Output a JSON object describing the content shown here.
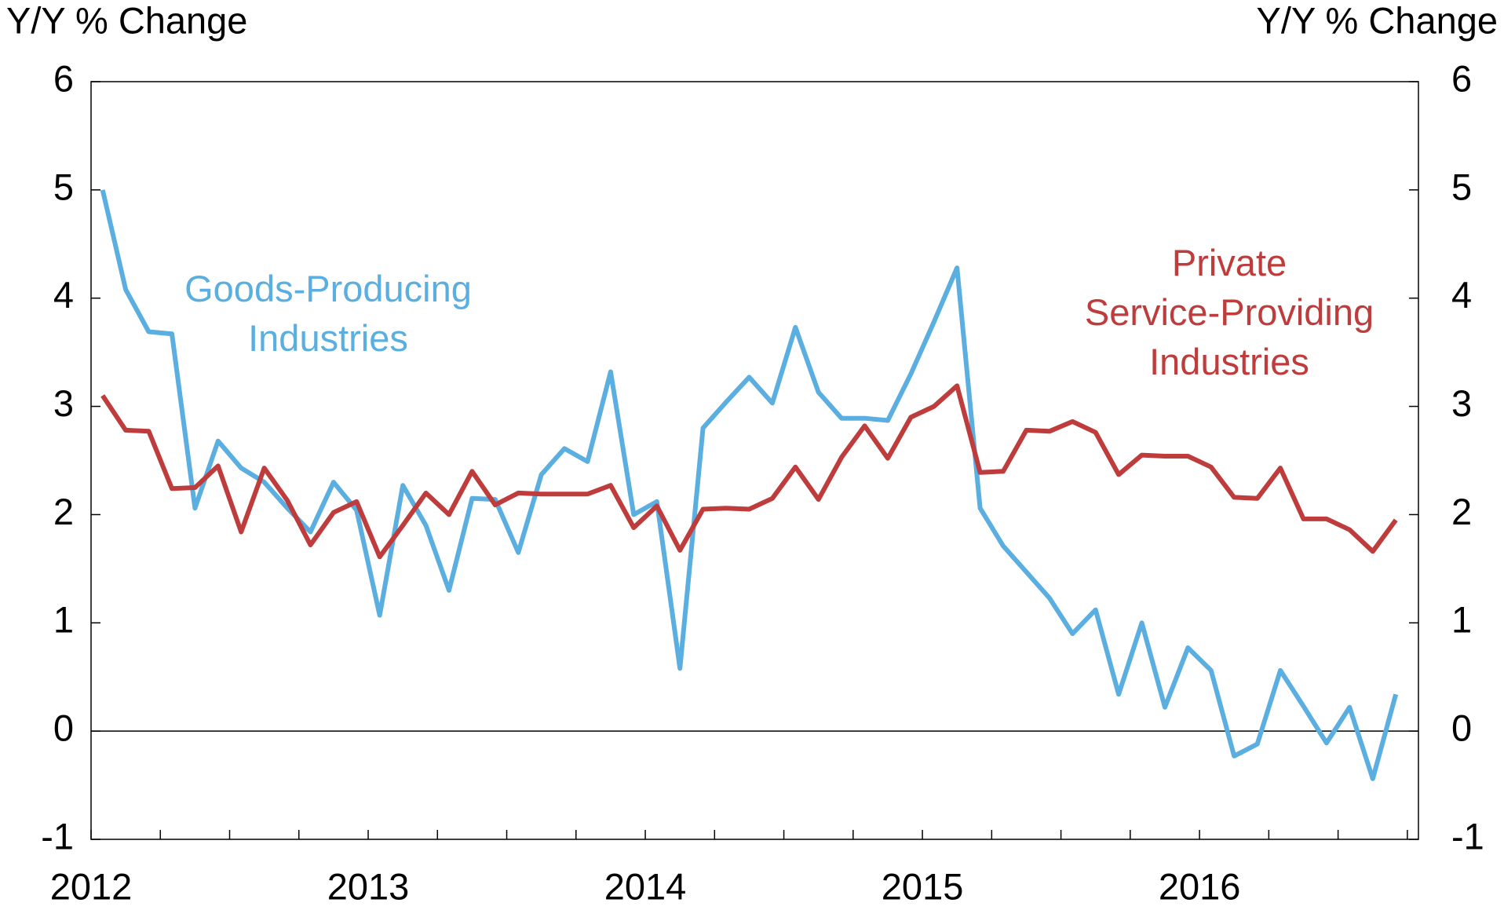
{
  "chart_data": {
    "type": "line",
    "y_label": "Y/Y % Change",
    "y2_label": "Y/Y % Change",
    "x": [
      "2012-01",
      "2012-02",
      "2012-03",
      "2012-04",
      "2012-05",
      "2012-06",
      "2012-07",
      "2012-08",
      "2012-09",
      "2012-10",
      "2012-11",
      "2012-12",
      "2013-01",
      "2013-02",
      "2013-03",
      "2013-04",
      "2013-05",
      "2013-06",
      "2013-07",
      "2013-08",
      "2013-09",
      "2013-10",
      "2013-11",
      "2013-12",
      "2014-01",
      "2014-02",
      "2014-03",
      "2014-04",
      "2014-05",
      "2014-06",
      "2014-07",
      "2014-08",
      "2014-09",
      "2014-10",
      "2014-11",
      "2014-12",
      "2015-01",
      "2015-02",
      "2015-03",
      "2015-04",
      "2015-05",
      "2015-06",
      "2015-07",
      "2015-08",
      "2015-09",
      "2015-10",
      "2015-11",
      "2015-12",
      "2016-01",
      "2016-02",
      "2016-03",
      "2016-04",
      "2016-05",
      "2016-06",
      "2016-07",
      "2016-08",
      "2016-09"
    ],
    "series": [
      {
        "name": "Goods-Producing Industries",
        "color": "#5aaee0",
        "values": [
          5.0,
          4.08,
          3.69,
          3.67,
          2.06,
          2.68,
          2.43,
          2.3,
          2.06,
          1.84,
          2.3,
          2.04,
          1.07,
          2.27,
          1.9,
          1.3,
          2.15,
          2.14,
          1.65,
          2.37,
          2.61,
          2.49,
          3.32,
          2.0,
          2.12,
          0.58,
          2.8,
          3.04,
          3.27,
          3.03,
          3.73,
          3.13,
          2.89,
          2.89,
          2.87,
          3.3,
          3.78,
          4.28,
          2.06,
          1.71,
          1.47,
          1.23,
          0.9,
          1.12,
          0.34,
          1.0,
          0.22,
          0.77,
          0.56,
          -0.23,
          -0.12,
          0.56,
          0.23,
          -0.11,
          0.22,
          -0.44,
          0.34
        ]
      },
      {
        "name": "Private Service-Providing Industries",
        "color": "#be3c3c",
        "values": [
          3.1,
          2.78,
          2.77,
          2.24,
          2.25,
          2.45,
          1.84,
          2.43,
          2.13,
          1.72,
          2.02,
          2.12,
          1.61,
          1.9,
          2.2,
          2.0,
          2.4,
          2.09,
          2.2,
          2.19,
          2.19,
          2.19,
          2.27,
          1.88,
          2.08,
          1.67,
          2.05,
          2.06,
          2.05,
          2.15,
          2.44,
          2.14,
          2.53,
          2.82,
          2.52,
          2.9,
          3.0,
          3.19,
          2.39,
          2.4,
          2.78,
          2.77,
          2.86,
          2.76,
          2.37,
          2.55,
          2.54,
          2.54,
          2.44,
          2.16,
          2.15,
          2.43,
          1.96,
          1.96,
          1.86,
          1.66,
          1.95
        ]
      }
    ],
    "xlim": [
      2012,
      2016.79
    ],
    "xticks": [
      2012,
      2013,
      2014,
      2015,
      2016
    ],
    "ylim": [
      -1,
      6
    ],
    "yticks": [
      -1,
      0,
      1,
      2,
      3,
      4,
      5,
      6
    ],
    "y2lim": [
      -1,
      6
    ],
    "y2ticks": [
      -1,
      0,
      1,
      2,
      3,
      4,
      5,
      6
    ],
    "grid": false
  }
}
